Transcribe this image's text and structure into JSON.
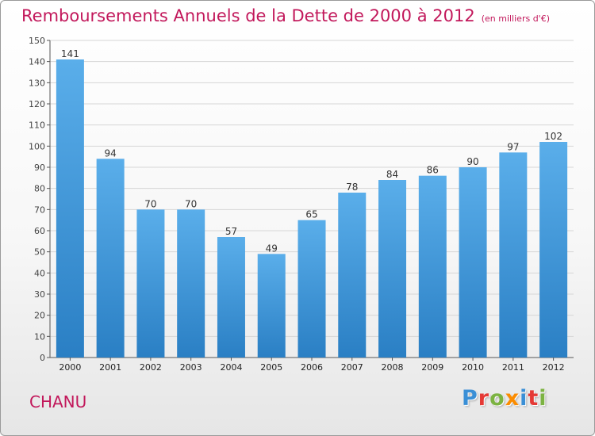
{
  "title": "Remboursements Annuels de la Dette de 2000 à 2012",
  "subtitle": "(en milliers d'€)",
  "commune": "CHANU",
  "brand": {
    "letters": [
      {
        "char": "P",
        "color": "#3a8fd6"
      },
      {
        "char": "r",
        "color": "#e53935"
      },
      {
        "char": "o",
        "color": "#7cb342"
      },
      {
        "char": "x",
        "color": "#fb8c00"
      },
      {
        "char": "i",
        "color": "#3a8fd6"
      },
      {
        "char": "t",
        "color": "#e53935"
      },
      {
        "char": "i",
        "color": "#7cb342"
      }
    ]
  },
  "colors": {
    "accent": "#c2185b",
    "bar_top": "#5aaeea",
    "bar_bottom": "#2a7fc4",
    "grid": "#d6d6d6",
    "axis": "#555555"
  },
  "chart_data": {
    "type": "bar",
    "title": "Remboursements Annuels de la Dette de 2000 à 2012",
    "subtitle": "(en milliers d'€)",
    "categories": [
      "2000",
      "2001",
      "2002",
      "2003",
      "2004",
      "2005",
      "2006",
      "2007",
      "2008",
      "2009",
      "2010",
      "2011",
      "2012"
    ],
    "values": [
      141,
      94,
      70,
      70,
      57,
      49,
      65,
      78,
      84,
      86,
      90,
      97,
      102
    ],
    "ylim": [
      0,
      150
    ],
    "yticks": [
      0,
      10,
      20,
      30,
      40,
      50,
      60,
      70,
      80,
      90,
      100,
      110,
      120,
      130,
      140,
      150
    ],
    "grid": true,
    "data_labels": true,
    "xlabel": "",
    "ylabel": ""
  }
}
